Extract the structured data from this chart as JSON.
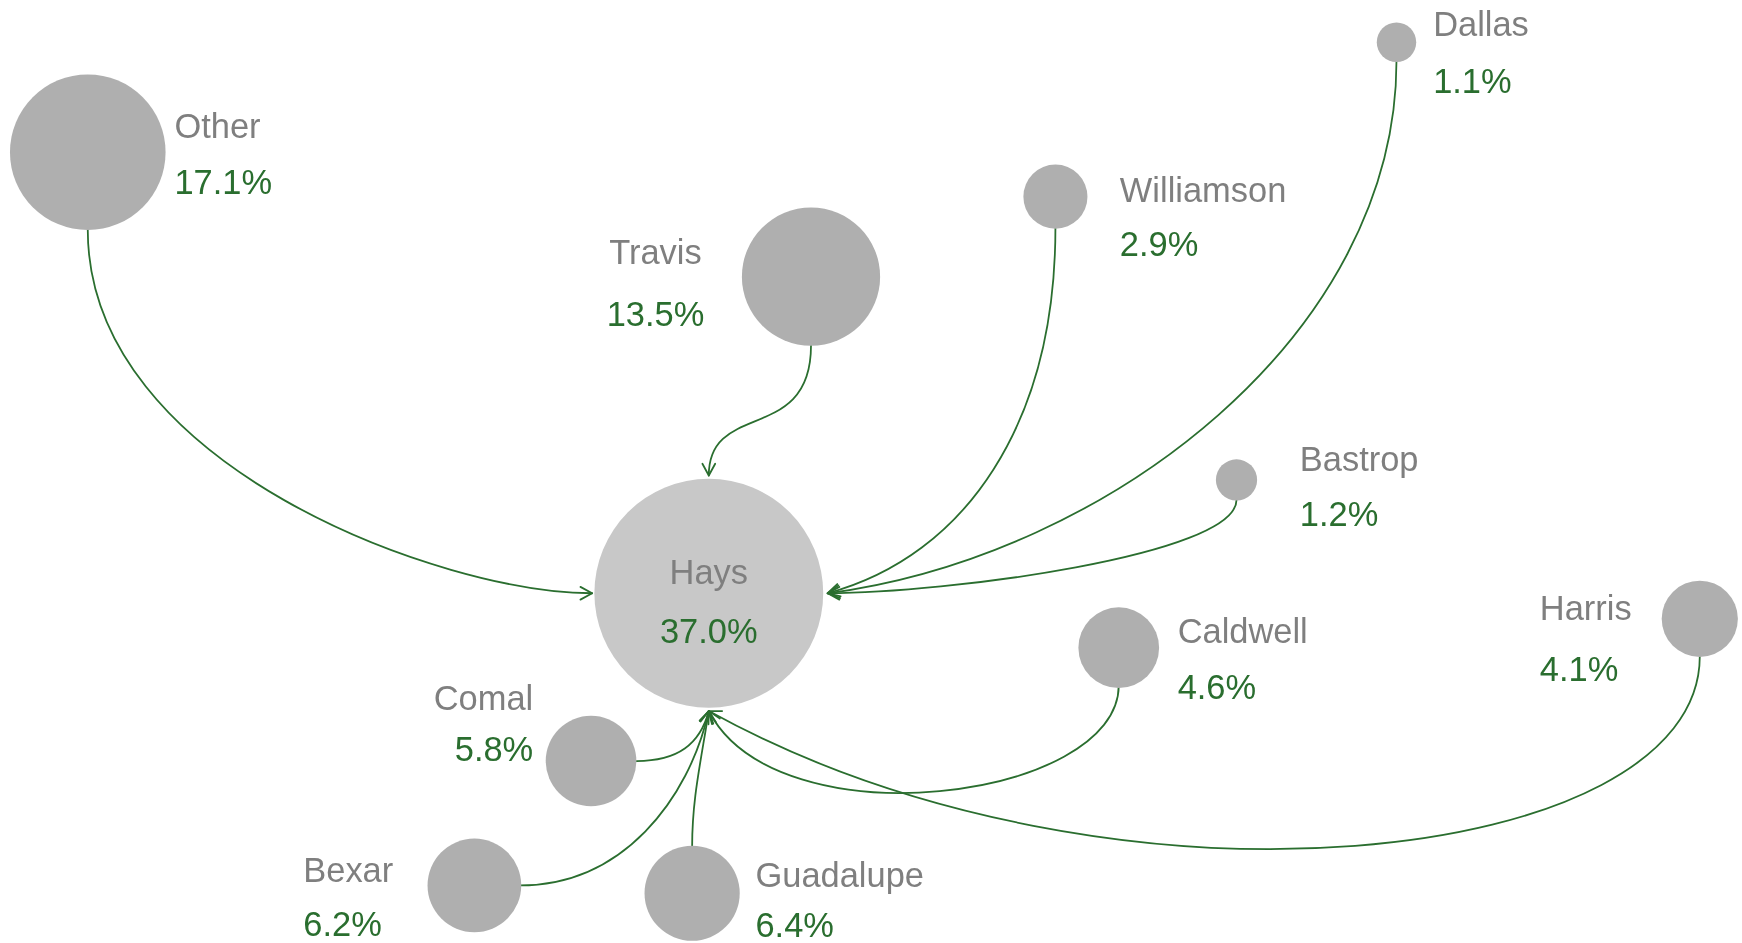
{
  "chart_data": {
    "type": "other",
    "categories": [
      "Hays",
      "Other",
      "Travis",
      "Williamson",
      "Dallas",
      "Bastrop",
      "Caldwell",
      "Harris",
      "Comal",
      "Bexar",
      "Guadalupe"
    ],
    "values": [
      37.0,
      17.1,
      13.5,
      2.9,
      1.1,
      1.2,
      4.6,
      4.1,
      5.8,
      6.2,
      6.4
    ],
    "value_labels": [
      "37.0%",
      "17.1%",
      "13.5%",
      "2.9%",
      "1.1%",
      "1.2%",
      "4.6%",
      "4.1%",
      "5.8%",
      "6.2%",
      "6.4%"
    ],
    "colors": [
      "#c8c8c8",
      "#afafaf",
      "#afafaf",
      "#afafaf",
      "#afafaf",
      "#afafaf",
      "#afafaf",
      "#afafaf",
      "#afafaf",
      "#afafaf",
      "#afafaf"
    ]
  }
}
